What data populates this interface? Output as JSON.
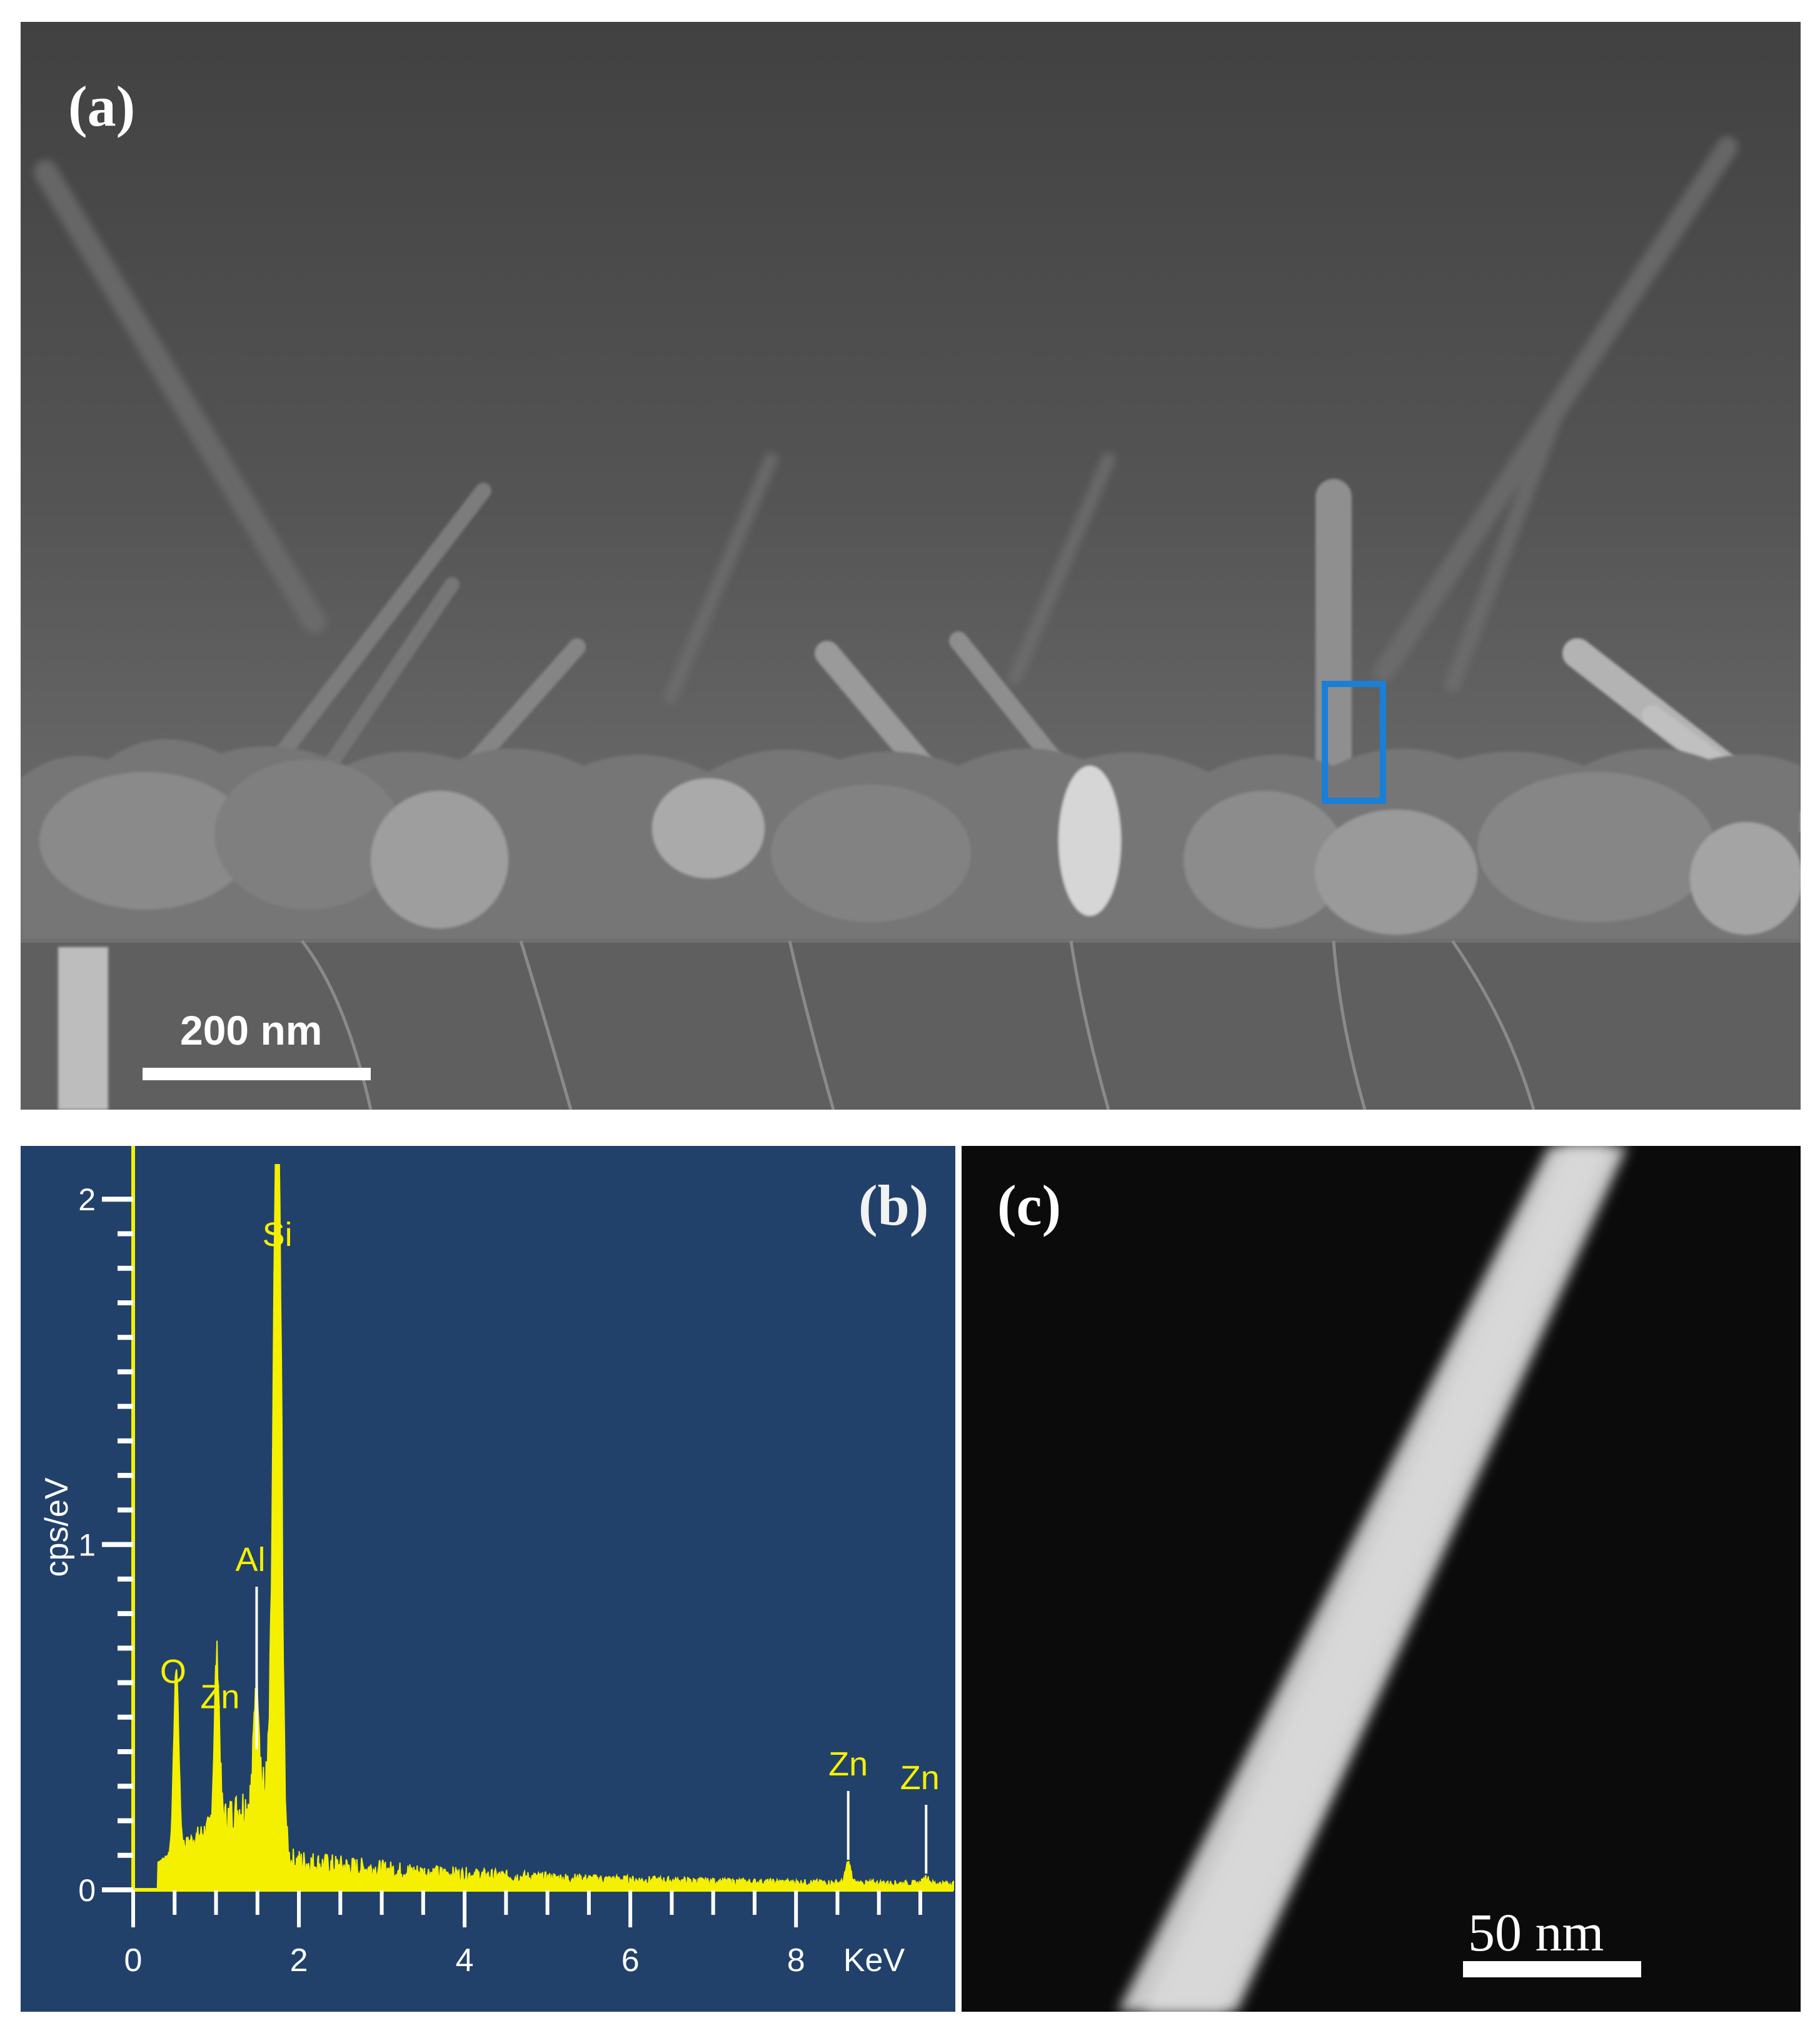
{
  "panel_a": {
    "label": "(a)",
    "scale_bar": "200 nm",
    "marker_color": "#1a7fd6"
  },
  "panel_b": {
    "label": "(b)",
    "line_color": "#f5f000",
    "background": "#21416b",
    "chart_data": {
      "type": "line",
      "title": "",
      "xlabel": "KeV",
      "ylabel": "cps/eV",
      "xlim": [
        0,
        9.9
      ],
      "ylim": [
        0,
        2.1
      ],
      "x_ticks": [
        "0",
        "2",
        "4",
        "6",
        "8"
      ],
      "y_ticks": [
        "0",
        "1",
        "2"
      ],
      "peaks": [
        {
          "element": "O",
          "energy_kev": 0.52,
          "cps_per_ev": 0.53
        },
        {
          "element": "Zn",
          "energy_kev": 1.01,
          "cps_per_ev": 0.49
        },
        {
          "element": "Al",
          "energy_kev": 1.49,
          "cps_per_ev": 0.38
        },
        {
          "element": "Si",
          "energy_kev": 1.74,
          "cps_per_ev": 2.1
        },
        {
          "element": "Zn",
          "energy_kev": 8.63,
          "cps_per_ev": 0.06
        },
        {
          "element": "Zn",
          "energy_kev": 9.57,
          "cps_per_ev": 0.02
        }
      ]
    }
  },
  "panel_c": {
    "label": "(c)",
    "scale_bar": "50 nm"
  }
}
